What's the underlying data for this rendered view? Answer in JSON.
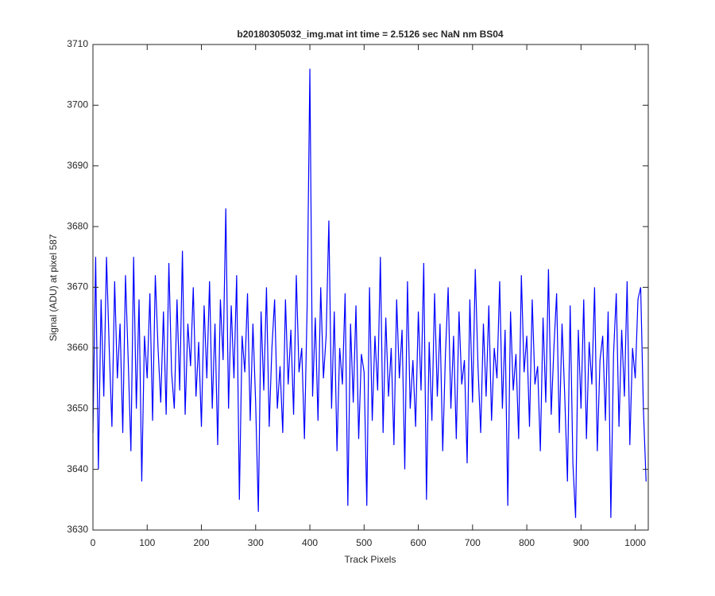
{
  "chart_data": {
    "type": "line",
    "title": "b20180305032_img.mat int time = 2.5126 sec  NaN nm BS04",
    "x_label": "Track Pixels",
    "y_label": "Signal (ADU) at pixel 587",
    "xlim": [
      0,
      1024
    ],
    "ylim": [
      3630,
      3710
    ],
    "xticks": [
      0,
      100,
      200,
      300,
      400,
      500,
      600,
      700,
      800,
      900,
      1000
    ],
    "yticks": [
      3630,
      3640,
      3650,
      3660,
      3670,
      3680,
      3690,
      3700,
      3710
    ],
    "grid": false,
    "x": [
      0,
      5,
      10,
      15,
      20,
      25,
      30,
      35,
      40,
      45,
      50,
      55,
      60,
      65,
      70,
      75,
      80,
      85,
      90,
      95,
      100,
      105,
      110,
      115,
      120,
      125,
      130,
      135,
      140,
      145,
      150,
      155,
      160,
      165,
      170,
      175,
      180,
      185,
      190,
      195,
      200,
      205,
      210,
      215,
      220,
      225,
      230,
      235,
      240,
      245,
      250,
      255,
      260,
      265,
      270,
      275,
      280,
      285,
      290,
      295,
      300,
      305,
      310,
      315,
      320,
      325,
      330,
      335,
      340,
      345,
      350,
      355,
      360,
      365,
      370,
      375,
      380,
      385,
      390,
      395,
      400,
      405,
      410,
      415,
      420,
      425,
      430,
      435,
      440,
      445,
      450,
      455,
      460,
      465,
      470,
      475,
      480,
      485,
      490,
      495,
      500,
      505,
      510,
      515,
      520,
      525,
      530,
      535,
      540,
      545,
      550,
      555,
      560,
      565,
      570,
      575,
      580,
      585,
      590,
      595,
      600,
      605,
      610,
      615,
      620,
      625,
      630,
      635,
      640,
      645,
      650,
      655,
      660,
      665,
      670,
      675,
      680,
      685,
      690,
      695,
      700,
      705,
      710,
      715,
      720,
      725,
      730,
      735,
      740,
      745,
      750,
      755,
      760,
      765,
      770,
      775,
      780,
      785,
      790,
      795,
      800,
      805,
      810,
      815,
      820,
      825,
      830,
      835,
      840,
      845,
      850,
      855,
      860,
      865,
      870,
      875,
      880,
      885,
      890,
      895,
      900,
      905,
      910,
      915,
      920,
      925,
      930,
      935,
      940,
      945,
      950,
      955,
      960,
      965,
      970,
      975,
      980,
      985,
      990,
      995,
      1000,
      1005,
      1010,
      1015,
      1020
    ],
    "series": [
      {
        "color": "#0000ff",
        "values": [
          3646,
          3675,
          3640,
          3668,
          3652,
          3675,
          3660,
          3647,
          3671,
          3655,
          3664,
          3646,
          3672,
          3658,
          3643,
          3675,
          3650,
          3668,
          3638,
          3662,
          3655,
          3669,
          3648,
          3672,
          3660,
          3651,
          3666,
          3649,
          3674,
          3656,
          3650,
          3668,
          3653,
          3676,
          3649,
          3664,
          3657,
          3670,
          3652,
          3661,
          3647,
          3667,
          3655,
          3671,
          3650,
          3664,
          3644,
          3668,
          3658,
          3683,
          3650,
          3667,
          3655,
          3672,
          3635,
          3662,
          3656,
          3669,
          3648,
          3664,
          3651,
          3633,
          3666,
          3653,
          3670,
          3647,
          3660,
          3668,
          3650,
          3657,
          3646,
          3668,
          3654,
          3663,
          3649,
          3672,
          3656,
          3660,
          3645,
          3667,
          3706,
          3652,
          3665,
          3648,
          3670,
          3655,
          3662,
          3681,
          3650,
          3666,
          3643,
          3660,
          3654,
          3669,
          3634,
          3664,
          3651,
          3667,
          3645,
          3659,
          3656,
          3634,
          3670,
          3648,
          3662,
          3653,
          3675,
          3646,
          3665,
          3652,
          3660,
          3644,
          3668,
          3655,
          3663,
          3640,
          3671,
          3650,
          3658,
          3647,
          3666,
          3653,
          3674,
          3635,
          3661,
          3648,
          3669,
          3652,
          3664,
          3643,
          3659,
          3670,
          3650,
          3662,
          3645,
          3666,
          3654,
          3658,
          3641,
          3668,
          3651,
          3673,
          3657,
          3646,
          3664,
          3652,
          3667,
          3648,
          3660,
          3655,
          3671,
          3650,
          3663,
          3634,
          3666,
          3653,
          3659,
          3645,
          3672,
          3656,
          3662,
          3647,
          3668,
          3654,
          3657,
          3643,
          3665,
          3651,
          3673,
          3649,
          3660,
          3669,
          3646,
          3664,
          3652,
          3638,
          3667,
          3641,
          3632,
          3663,
          3650,
          3668,
          3645,
          3661,
          3654,
          3670,
          3643,
          3658,
          3662,
          3648,
          3666,
          3632,
          3659,
          3669,
          3647,
          3663,
          3652,
          3671,
          3644,
          3660,
          3655,
          3668,
          3670,
          3650,
          3638
        ]
      }
    ]
  }
}
